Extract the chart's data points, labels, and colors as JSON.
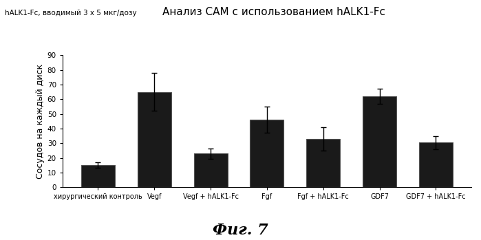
{
  "title": "Анализ CAM с использованием hALK1-Fc",
  "subtitle": "hALK1-Fc, вводимый 3 x 5 мкг/дозу",
  "ylabel": "Сосудов на каждый диск",
  "fig_label": "Фиг. 7",
  "categories": [
    "хирургический контроль",
    "Vegf",
    "Vegf + hALK1-Fc",
    "Fgf",
    "Fgf + hALK1-Fc",
    "GDF7",
    "GDF7 + hALK1-Fc"
  ],
  "values": [
    15,
    65,
    23,
    46,
    33,
    62,
    30.5
  ],
  "errors": [
    2.0,
    13.0,
    3.5,
    9.0,
    8.0,
    5.0,
    4.5
  ],
  "bar_color": "#1a1a1a",
  "bar_edgecolor": "#555555",
  "background_color": "#ffffff",
  "ylim": [
    0,
    90
  ],
  "yticks": [
    0,
    10,
    20,
    30,
    40,
    50,
    60,
    70,
    80,
    90
  ],
  "title_fontsize": 11,
  "subtitle_fontsize": 7.5,
  "ylabel_fontsize": 9,
  "xlabel_fontsize": 7,
  "fig_label_fontsize": 16,
  "bar_width": 0.6
}
